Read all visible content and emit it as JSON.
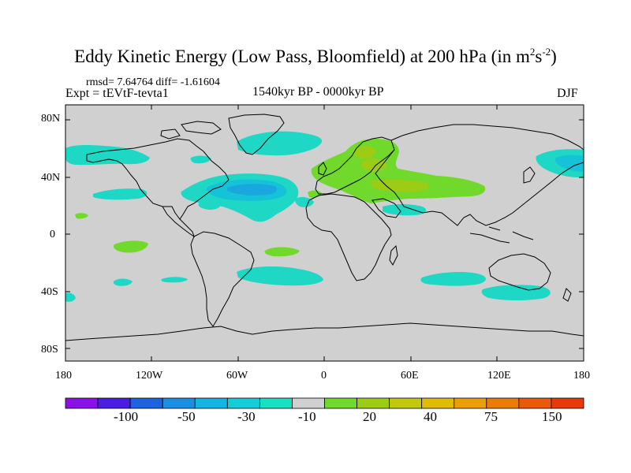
{
  "title": {
    "main": "Eddy Kinetic Energy (Low Pass, Bloomfield) at 200 hPa (in m",
    "sup1": "2",
    "mid": "s",
    "sup2": "-2",
    "end": ")"
  },
  "stats": "rmsd= 7.64764 diff= -1.61604",
  "experiment": "Expt = tEVtF-tevta1",
  "period": "1540kyr BP - 0000kyr BP",
  "season": "DJF",
  "axes": {
    "y_labels": [
      "80N",
      "40N",
      "0",
      "40S",
      "80S"
    ],
    "x_labels": [
      "180",
      "120W",
      "60W",
      "0",
      "60E",
      "120E",
      "180"
    ]
  },
  "colorbar": {
    "labels": [
      "-100",
      "-50",
      "-30",
      "-10",
      "20",
      "40",
      "75",
      "150"
    ],
    "colors": [
      "#8a12e8",
      "#4a1ee0",
      "#1d63dd",
      "#1a8ee0",
      "#15b4e2",
      "#15cdd6",
      "#18e0c0",
      "#d0d0d0",
      "#70d92c",
      "#9ccc14",
      "#c2c80c",
      "#e0bc06",
      "#ec9e06",
      "#ec7c08",
      "#ea5a0a",
      "#e63a0a"
    ]
  },
  "map": {
    "ocean_land_fill": "#d0d0d0",
    "coastline": "#000000",
    "negative_light": "#1ed7c4",
    "negative_mid": "#16c2d8",
    "negative_deep": "#1aa6de",
    "positive_light": "#70d92c",
    "positive_mid": "#9ccc14"
  }
}
